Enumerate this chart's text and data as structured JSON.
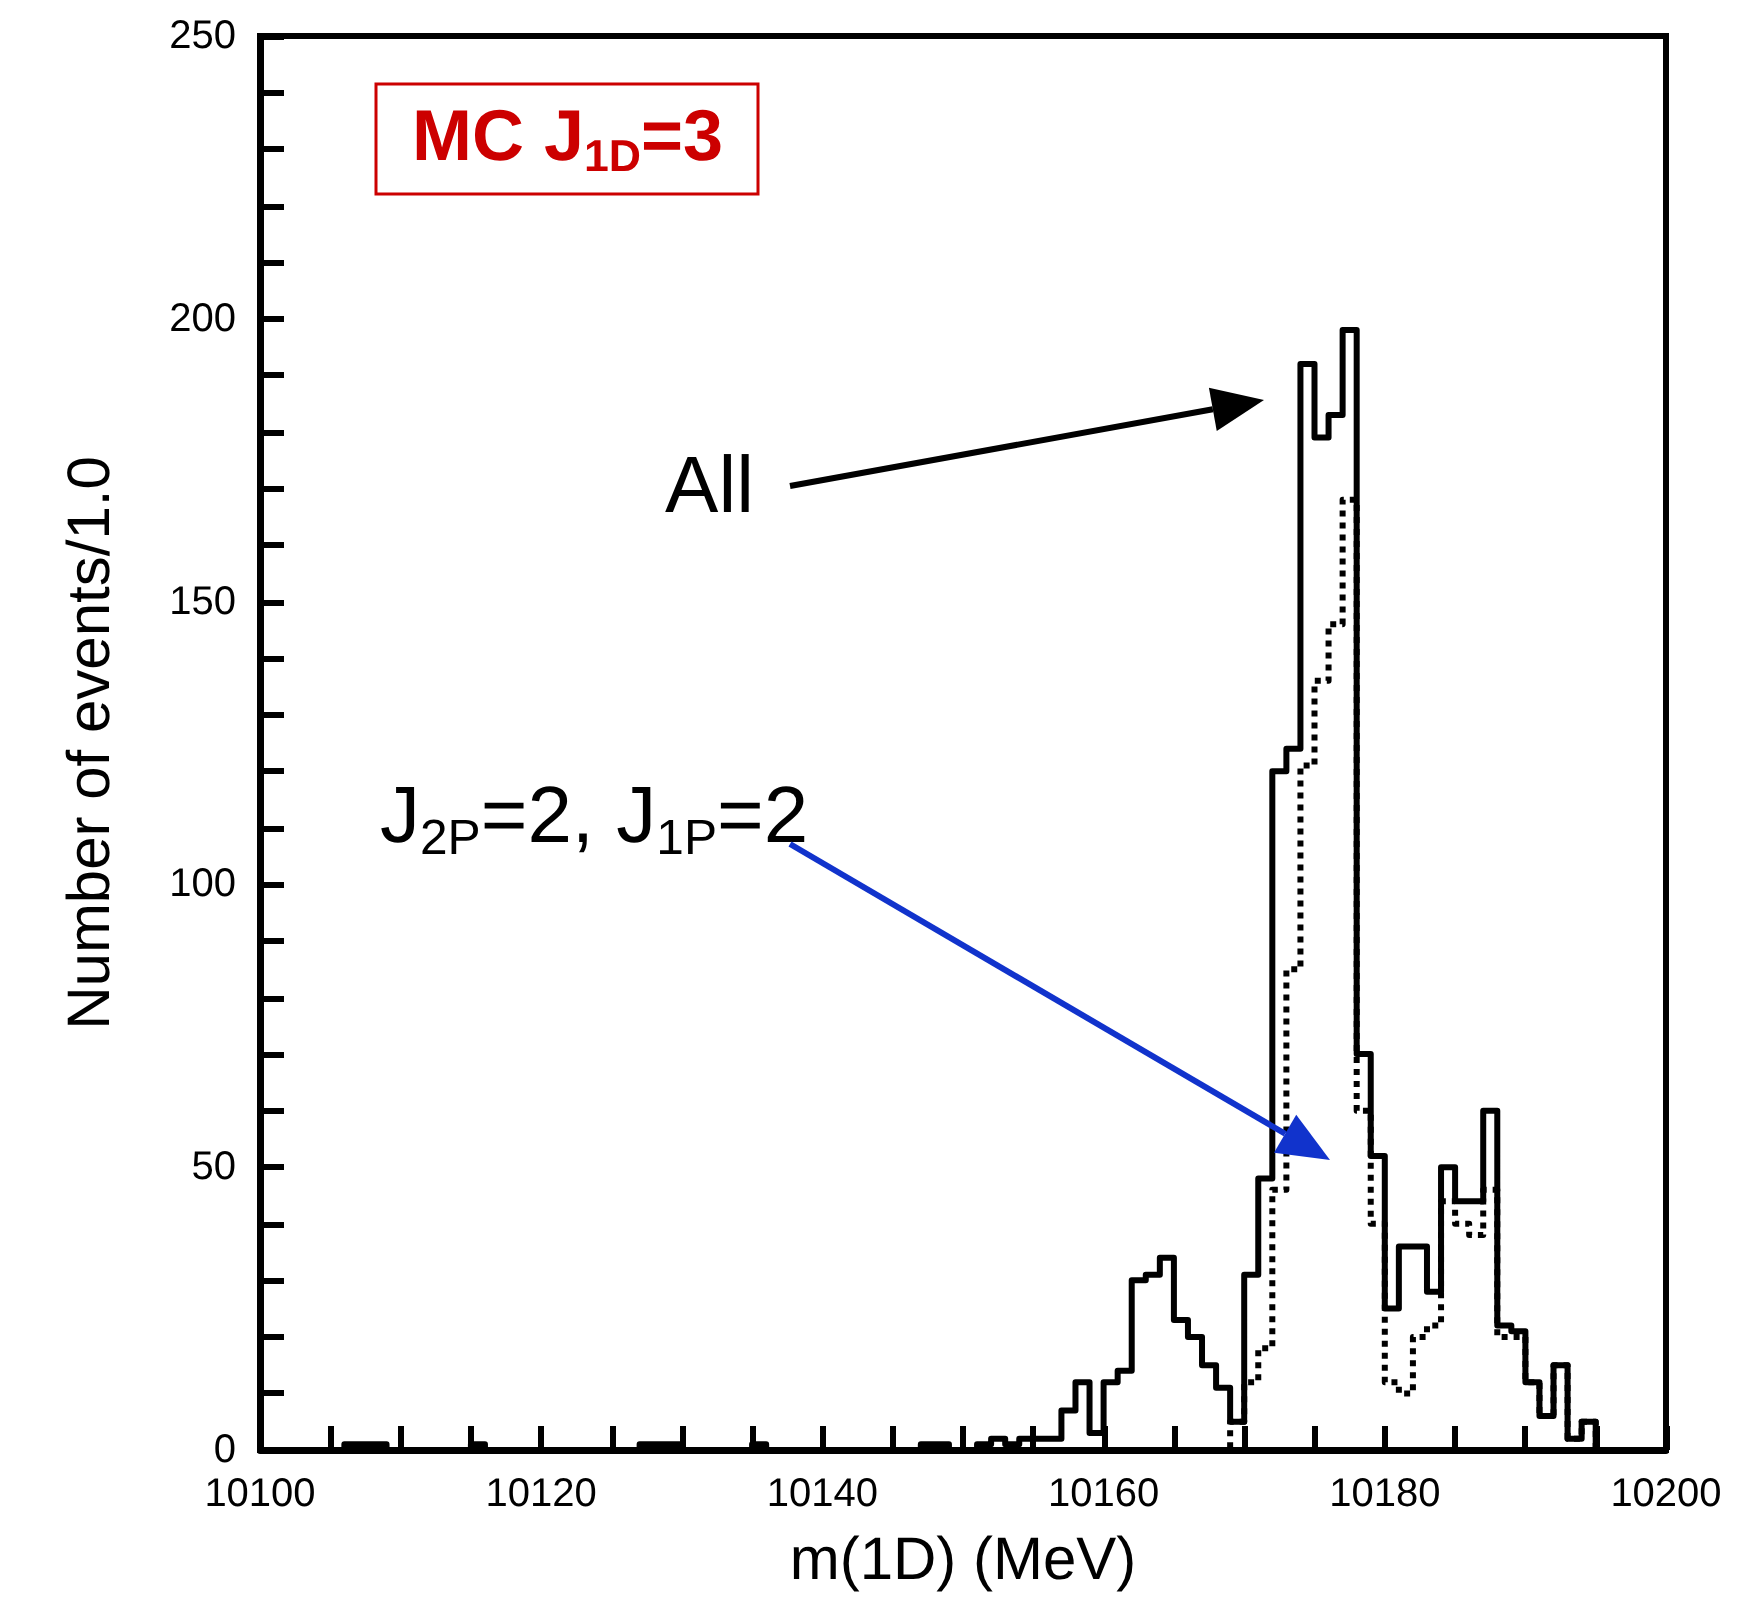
{
  "chart_data": {
    "type": "step",
    "title": "MC J$_{1D}$=3",
    "xlabel": "m(1D) (MeV)",
    "ylabel": "Number of events/1.0",
    "x": [
      10100,
      10101,
      10102,
      10103,
      10104,
      10105,
      10106,
      10107,
      10108,
      10109,
      10110,
      10111,
      10112,
      10113,
      10114,
      10115,
      10116,
      10117,
      10118,
      10119,
      10120,
      10121,
      10122,
      10123,
      10124,
      10125,
      10126,
      10127,
      10128,
      10129,
      10130,
      10131,
      10132,
      10133,
      10134,
      10135,
      10136,
      10137,
      10138,
      10139,
      10140,
      10141,
      10142,
      10143,
      10144,
      10145,
      10146,
      10147,
      10148,
      10149,
      10150,
      10151,
      10152,
      10153,
      10154,
      10155,
      10156,
      10157,
      10158,
      10159,
      10160,
      10161,
      10162,
      10163,
      10164,
      10165,
      10166,
      10167,
      10168,
      10169,
      10170,
      10171,
      10172,
      10173,
      10174,
      10175,
      10176,
      10177,
      10178,
      10179,
      10180,
      10181,
      10182,
      10183,
      10184,
      10185,
      10186,
      10187,
      10188,
      10189,
      10190,
      10191,
      10192,
      10193,
      10194,
      10195,
      10196,
      10197,
      10198,
      10199
    ],
    "series": [
      {
        "color": "#000000",
        "line_style": "solid",
        "values": [
          0,
          0,
          0,
          0,
          0,
          0,
          1,
          1,
          1,
          0,
          0,
          0,
          0,
          0,
          0,
          1,
          0,
          0,
          0,
          0,
          0,
          0,
          0,
          0,
          0,
          0,
          0,
          1,
          1,
          1,
          0,
          0,
          0,
          0,
          0,
          1,
          0,
          0,
          0,
          0,
          0,
          0,
          0,
          0,
          0,
          0,
          0,
          1,
          1,
          0,
          0,
          1,
          2,
          1,
          2,
          2,
          2,
          7,
          12,
          3,
          12,
          14,
          30,
          31,
          34,
          23,
          20,
          15,
          11,
          5,
          31,
          48,
          120,
          124,
          192,
          179,
          183,
          198,
          70,
          52,
          25,
          36,
          36,
          28,
          50,
          44,
          44,
          60,
          22,
          21,
          12,
          6,
          15,
          2,
          5,
          0,
          0,
          0,
          0,
          0
        ]
      },
      {
        "color": "#000000",
        "line_style": "dotted",
        "values": [
          0,
          0,
          0,
          0,
          0,
          0,
          0,
          0,
          0,
          0,
          0,
          0,
          0,
          0,
          0,
          0,
          0,
          0,
          0,
          0,
          0,
          0,
          0,
          0,
          0,
          0,
          0,
          0,
          0,
          0,
          0,
          0,
          0,
          0,
          0,
          0,
          0,
          0,
          0,
          0,
          0,
          0,
          0,
          0,
          0,
          0,
          0,
          0,
          0,
          0,
          0,
          0,
          0,
          0,
          0,
          0,
          0,
          0,
          0,
          0,
          0,
          0,
          0,
          0,
          0,
          0,
          0,
          0,
          0,
          5,
          12,
          18,
          46,
          85,
          121,
          136,
          146,
          168,
          60,
          40,
          12,
          10,
          20,
          22,
          44,
          40,
          38,
          46,
          20,
          20,
          12,
          6,
          15,
          2,
          5,
          0,
          0,
          0,
          0,
          0
        ]
      }
    ],
    "xlim": [
      10100,
      10200
    ],
    "xticks": [
      10100,
      {
        "value": 10105,
        "label": null
      },
      {
        "value": 10110,
        "label": null
      },
      {
        "value": 10115,
        "label": null
      },
      10120,
      {
        "value": 10125,
        "label": null
      },
      {
        "value": 10130,
        "label": null
      },
      {
        "value": 10135,
        "label": null
      },
      10140,
      {
        "value": 10145,
        "label": null
      },
      {
        "value": 10150,
        "label": null
      },
      {
        "value": 10155,
        "label": null
      },
      10160,
      {
        "value": 10165,
        "label": null
      },
      {
        "value": 10170,
        "label": null
      },
      {
        "value": 10175,
        "label": null
      },
      10180,
      {
        "value": 10185,
        "label": null
      },
      {
        "value": 10190,
        "label": null
      },
      {
        "value": 10195,
        "label": null
      },
      10200
    ],
    "ylim": [
      0,
      250
    ],
    "yticks": [
      0,
      {
        "value": 10,
        "label": null
      },
      {
        "value": 20,
        "label": null
      },
      {
        "value": 30,
        "label": null
      },
      {
        "value": 40,
        "label": null
      },
      50,
      {
        "value": 60,
        "label": null
      },
      {
        "value": 70,
        "label": null
      },
      {
        "value": 80,
        "label": null
      },
      {
        "value": 90,
        "label": null
      },
      100,
      {
        "value": 110,
        "label": null
      },
      {
        "value": 120,
        "label": null
      },
      {
        "value": 130,
        "label": null
      },
      {
        "value": 140,
        "label": null
      },
      150,
      {
        "value": 160,
        "label": null
      },
      {
        "value": 170,
        "label": null
      },
      {
        "value": 180,
        "label": null
      },
      {
        "value": 190,
        "label": null
      },
      200,
      {
        "value": 210,
        "label": null
      },
      {
        "value": 220,
        "label": null
      },
      {
        "value": 230,
        "label": null
      },
      {
        "value": 240,
        "label": null
      },
      250
    ],
    "annotations": [
      "All",
      "J$_{2P}$=2, J$_{1P}$=2"
    ]
  }
}
